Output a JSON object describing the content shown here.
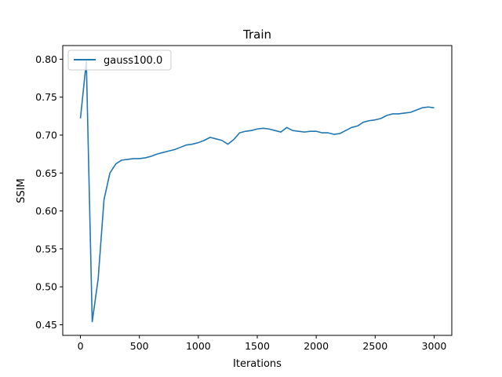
{
  "chart_data": {
    "type": "line",
    "title": "Train",
    "xlabel": "Iterations",
    "ylabel": "SSIM",
    "xlim": [
      -150,
      3150
    ],
    "ylim": [
      0.436,
      0.818
    ],
    "xticks": [
      0,
      500,
      1000,
      1500,
      2000,
      2500,
      3000
    ],
    "yticks": [
      0.45,
      0.5,
      0.55,
      0.6,
      0.65,
      0.7,
      0.75,
      0.8
    ],
    "xtick_labels": [
      "0",
      "500",
      "1000",
      "1500",
      "2000",
      "2500",
      "3000"
    ],
    "ytick_labels": [
      "0.45",
      "0.50",
      "0.55",
      "0.60",
      "0.65",
      "0.70",
      "0.75",
      "0.80"
    ],
    "grid": false,
    "legend_position": "upper-left",
    "series": [
      {
        "name": "gauss100.0",
        "color": "#1f77b4",
        "x": [
          0,
          50,
          100,
          150,
          200,
          250,
          300,
          350,
          400,
          450,
          500,
          550,
          600,
          650,
          700,
          750,
          800,
          850,
          900,
          950,
          1000,
          1050,
          1100,
          1150,
          1200,
          1250,
          1300,
          1350,
          1400,
          1450,
          1500,
          1550,
          1600,
          1650,
          1700,
          1750,
          1800,
          1850,
          1900,
          1950,
          2000,
          2050,
          2100,
          2150,
          2200,
          2250,
          2300,
          2350,
          2400,
          2450,
          2500,
          2550,
          2600,
          2650,
          2700,
          2750,
          2800,
          2850,
          2900,
          2950,
          3000
        ],
        "y": [
          0.722,
          0.797,
          0.454,
          0.51,
          0.615,
          0.65,
          0.662,
          0.667,
          0.668,
          0.669,
          0.669,
          0.67,
          0.672,
          0.675,
          0.677,
          0.679,
          0.681,
          0.684,
          0.687,
          0.688,
          0.69,
          0.693,
          0.697,
          0.695,
          0.693,
          0.688,
          0.694,
          0.703,
          0.705,
          0.706,
          0.708,
          0.709,
          0.708,
          0.706,
          0.704,
          0.71,
          0.706,
          0.705,
          0.704,
          0.705,
          0.705,
          0.703,
          0.703,
          0.701,
          0.702,
          0.706,
          0.71,
          0.712,
          0.717,
          0.719,
          0.72,
          0.722,
          0.726,
          0.728,
          0.728,
          0.729,
          0.73,
          0.733,
          0.736,
          0.737,
          0.736
        ]
      }
    ]
  }
}
